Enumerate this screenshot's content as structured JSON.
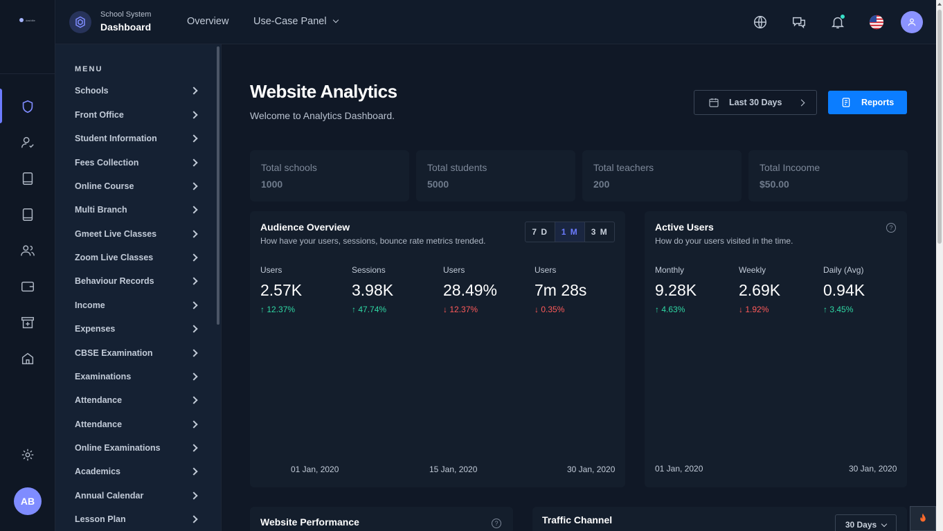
{
  "brand": {
    "subtitle": "School System",
    "title": "Dashboard",
    "logo_text": "dashlite"
  },
  "topnav": {
    "overview": "Overview",
    "usecase": "Use-Case Panel"
  },
  "rail": {
    "avatar": "AB"
  },
  "menu": {
    "title": "MENU",
    "items": [
      "Schools",
      "Front Office",
      "Student Information",
      "Fees Collection",
      "Online Course",
      "Multi Branch",
      "Gmeet Live Classes",
      "Zoom Live Classes",
      "Behaviour Records",
      "Income",
      "Expenses",
      "CBSE Examination",
      "Examinations",
      "Attendance",
      "Attendance",
      "Online Examinations",
      "Academics",
      "Annual Calendar",
      "Lesson Plan"
    ]
  },
  "page": {
    "title": "Website Analytics",
    "subtitle": "Welcome to Analytics Dashboard.",
    "range_button": "Last 30 Days",
    "reports_button": "Reports"
  },
  "stats": [
    {
      "label": "Total schools",
      "value": "1000"
    },
    {
      "label": "Total students",
      "value": "5000"
    },
    {
      "label": "Total teachers",
      "value": "200"
    },
    {
      "label": "Total Incoome",
      "value": "$50.00"
    }
  ],
  "audience": {
    "title": "Audience Overview",
    "subtitle": "How have your users, sessions, bounce rate metrics trended.",
    "segments": [
      "7 D",
      "1 M",
      "3 M"
    ],
    "active_segment": "1 M",
    "metrics": [
      {
        "label": "Users",
        "value": "2.57K",
        "change": "12.37%",
        "dir": "up"
      },
      {
        "label": "Sessions",
        "value": "3.98K",
        "change": "47.74%",
        "dir": "up"
      },
      {
        "label": "Users",
        "value": "28.49%",
        "change": "12.37%",
        "dir": "down"
      },
      {
        "label": "Users",
        "value": "7m 28s",
        "change": "0.35%",
        "dir": "down"
      }
    ],
    "dates": [
      "01 Jan, 2020",
      "15 Jan, 2020",
      "30 Jan, 2020"
    ]
  },
  "active_users": {
    "title": "Active Users",
    "subtitle": "How do your users visited in the time.",
    "metrics": [
      {
        "label": "Monthly",
        "value": "9.28K",
        "change": "4.63%",
        "dir": "up"
      },
      {
        "label": "Weekly",
        "value": "2.69K",
        "change": "1.92%",
        "dir": "down"
      },
      {
        "label": "Daily (Avg)",
        "value": "0.94K",
        "change": "3.45%",
        "dir": "up"
      }
    ],
    "dates": [
      "01 Jan, 2020",
      "30 Jan, 2020"
    ]
  },
  "performance": {
    "title": "Website Performance"
  },
  "traffic": {
    "title": "Traffic Channel",
    "range": "30 Days"
  },
  "colors": {
    "accent": "#0b7dff",
    "up": "#2fd8a4",
    "down": "#ff5a5a",
    "avatar": "#7f8cff"
  }
}
